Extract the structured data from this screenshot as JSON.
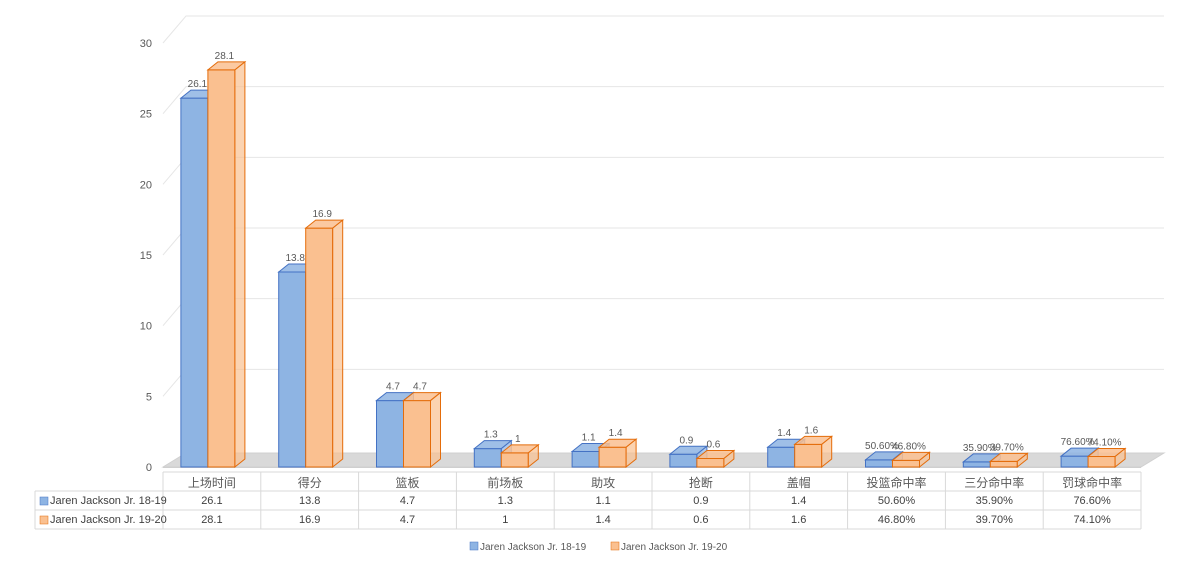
{
  "chart_data": {
    "type": "bar",
    "title": "",
    "xlabel": "",
    "ylabel": "",
    "ylim": [
      0,
      30
    ],
    "yticks": [
      0,
      5,
      10,
      15,
      20,
      25,
      30
    ],
    "grid": true,
    "legend_position": "bottom",
    "categories": [
      "上场时间",
      "得分",
      "篮板",
      "前场板",
      "助攻",
      "抢断",
      "盖帽",
      "投篮命中率",
      "三分命中率",
      "罚球命中率"
    ],
    "series": [
      {
        "name": "Jaren Jackson Jr. 18-19",
        "color": "#8EB4E3",
        "edge_color": "#4472C4",
        "values": [
          26.1,
          13.8,
          4.7,
          1.3,
          1.1,
          0.9,
          1.4,
          0.506,
          0.359,
          0.766
        ],
        "labels": [
          "26.1",
          "13.8",
          "4.7",
          "1.3",
          "1.1",
          "0.9",
          "1.4",
          "50.60%",
          "35.90%",
          "76.60%"
        ]
      },
      {
        "name": "Jaren Jackson Jr. 19-20",
        "color": "#FAC090",
        "edge_color": "#E46C0A",
        "values": [
          28.1,
          16.9,
          4.7,
          1.0,
          1.4,
          0.6,
          1.6,
          0.468,
          0.397,
          0.741
        ],
        "labels": [
          "28.1",
          "16.9",
          "4.7",
          "1",
          "1.4",
          "0.6",
          "1.6",
          "46.80%",
          "39.70%",
          "74.10%"
        ]
      }
    ]
  }
}
